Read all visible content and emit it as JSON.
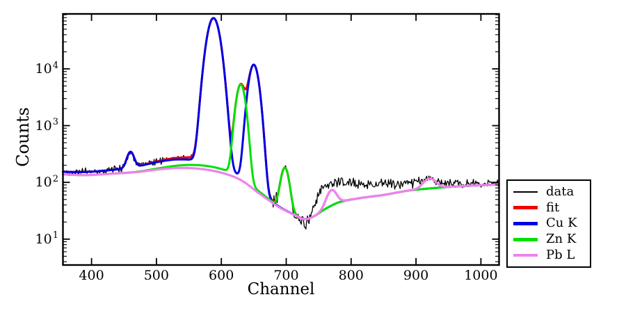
{
  "chart_data": {
    "type": "line",
    "title": "",
    "xlabel": "Channel",
    "ylabel": "Counts",
    "grid": false,
    "x_axis": {
      "range": [
        356,
        1028
      ],
      "major_ticks": [
        400,
        500,
        600,
        700,
        800,
        900,
        1000
      ],
      "tick_labels": [
        "400",
        "500",
        "600",
        "700",
        "800",
        "900",
        "1000"
      ]
    },
    "y_axis": {
      "scale": "log",
      "range": [
        3.5,
        93000
      ],
      "tick_base": "10",
      "tick_exponents": [
        1,
        2,
        3,
        4
      ],
      "minor_ticks_per_decade": [
        2,
        3,
        4,
        5,
        6,
        7,
        8,
        9
      ]
    },
    "legend": {
      "position": "outside right",
      "entries": [
        {
          "label": "data",
          "color": "#000000"
        },
        {
          "label": "fit",
          "color": "#f20000"
        },
        {
          "label": "Cu K",
          "color": "#0000e6"
        },
        {
          "label": "Zn K",
          "color": "#00e100"
        },
        {
          "label": "Pb L",
          "color": "#ee82ee"
        }
      ]
    },
    "backgrounds": {
      "background": [
        [
          356,
          138
        ],
        [
          390,
          134
        ],
        [
          430,
          142
        ],
        [
          470,
          152
        ],
        [
          505,
          170
        ],
        [
          535,
          180
        ],
        [
          565,
          174
        ],
        [
          600,
          148
        ],
        [
          630,
          110
        ],
        [
          660,
          62
        ],
        [
          690,
          36
        ],
        [
          715,
          26
        ],
        [
          728,
          22.5
        ],
        [
          742,
          25
        ],
        [
          760,
          34
        ],
        [
          780,
          44
        ],
        [
          810,
          52
        ],
        [
          850,
          60
        ],
        [
          890,
          72
        ],
        [
          920,
          78
        ],
        [
          950,
          83
        ],
        [
          990,
          88
        ],
        [
          1028,
          92
        ]
      ],
      "data_base": [
        [
          356,
          138
        ],
        [
          390,
          134
        ],
        [
          430,
          142
        ],
        [
          470,
          152
        ],
        [
          505,
          170
        ],
        [
          535,
          180
        ],
        [
          565,
          174
        ],
        [
          600,
          148
        ],
        [
          630,
          110
        ],
        [
          660,
          62
        ],
        [
          690,
          34
        ],
        [
          704,
          27
        ],
        [
          715,
          23
        ],
        [
          728,
          19
        ],
        [
          736,
          22
        ],
        [
          744,
          38
        ],
        [
          752,
          70
        ],
        [
          762,
          90
        ],
        [
          775,
          95
        ],
        [
          800,
          97
        ],
        [
          830,
          93
        ],
        [
          860,
          96
        ],
        [
          890,
          99
        ],
        [
          920,
          100
        ],
        [
          950,
          96
        ],
        [
          990,
          95
        ],
        [
          1028,
          97
        ]
      ]
    },
    "noise": {
      "seed": 42,
      "scale": 1.9,
      "max_sigma": 0.28
    },
    "series": [
      {
        "name": "data",
        "color": "#000000",
        "linewidth": 1.3,
        "base": "data_base",
        "noise": true,
        "peaks": [
          {
            "center": 400,
            "sigma": 80,
            "amp": 18
          },
          {
            "center": 540,
            "sigma": 50,
            "amp": 70
          },
          {
            "center": 575,
            "sigma": 45,
            "amp": 28
          },
          {
            "center": 460,
            "sigma": 5,
            "amp": 150
          },
          {
            "center": 588,
            "sigma": 8,
            "amp": 77000
          },
          {
            "center": 630,
            "sigma": 6,
            "amp": 5200
          },
          {
            "center": 650,
            "sigma": 6.5,
            "amp": 11800
          },
          {
            "center": 698,
            "sigma": 5.5,
            "amp": 150
          },
          {
            "center": 921,
            "sigma": 9,
            "amp": 18
          }
        ]
      },
      {
        "name": "fit",
        "color": "#f20000",
        "linewidth": 3,
        "base": "background",
        "noise": false,
        "peaks": [
          {
            "center": 400,
            "sigma": 80,
            "amp": 18
          },
          {
            "center": 540,
            "sigma": 50,
            "amp": 70
          },
          {
            "center": 575,
            "sigma": 45,
            "amp": 28
          },
          {
            "center": 460,
            "sigma": 5,
            "amp": 165
          },
          {
            "center": 588,
            "sigma": 8,
            "amp": 78500
          },
          {
            "center": 630,
            "sigma": 6,
            "amp": 5200
          },
          {
            "center": 650,
            "sigma": 6.5,
            "amp": 11800
          },
          {
            "center": 698,
            "sigma": 5.5,
            "amp": 150
          },
          {
            "center": 770,
            "sigma": 7,
            "amp": 34
          },
          {
            "center": 921,
            "sigma": 9,
            "amp": 39
          }
        ]
      },
      {
        "name": "Cu K",
        "color": "#0000e6",
        "linewidth": 3,
        "base": "background",
        "noise": false,
        "peaks": [
          {
            "center": 400,
            "sigma": 80,
            "amp": 18
          },
          {
            "center": 540,
            "sigma": 50,
            "amp": 70
          },
          {
            "center": 460,
            "sigma": 5,
            "amp": 165
          },
          {
            "center": 588,
            "sigma": 8,
            "amp": 78500
          },
          {
            "center": 650,
            "sigma": 6.5,
            "amp": 11800
          }
        ]
      },
      {
        "name": "Zn K",
        "color": "#00e100",
        "linewidth": 3,
        "base": "background",
        "noise": false,
        "peaks": [
          {
            "center": 575,
            "sigma": 45,
            "amp": 28
          },
          {
            "center": 630,
            "sigma": 6,
            "amp": 5200
          },
          {
            "center": 698,
            "sigma": 5.5,
            "amp": 150
          }
        ]
      },
      {
        "name": "Pb L",
        "color": "#ee82ee",
        "linewidth": 3.2,
        "base": "background",
        "noise": false,
        "peaks": [
          {
            "center": 770,
            "sigma": 7,
            "amp": 34
          },
          {
            "center": 921,
            "sigma": 9,
            "amp": 39
          }
        ]
      }
    ]
  }
}
